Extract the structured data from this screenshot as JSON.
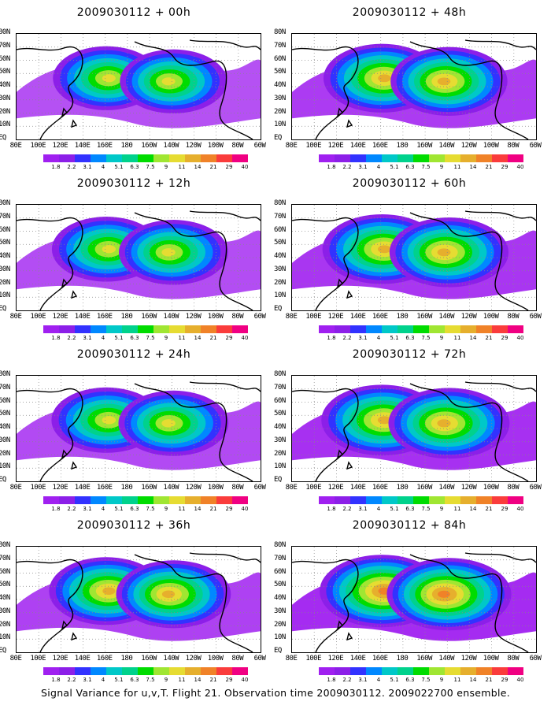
{
  "panels": [
    {
      "title": "2009030112 + 00h"
    },
    {
      "title": "2009030112 + 48h"
    },
    {
      "title": "2009030112 + 12h"
    },
    {
      "title": "2009030112 + 60h"
    },
    {
      "title": "2009030112 + 24h"
    },
    {
      "title": "2009030112 + 72h"
    },
    {
      "title": "2009030112 + 36h"
    },
    {
      "title": "2009030112 + 84h"
    }
  ],
  "latitude_labels": [
    "80N",
    "70N",
    "60N",
    "50N",
    "40N",
    "30N",
    "20N",
    "10N",
    "EQ"
  ],
  "longitude_labels": [
    "80E",
    "100E",
    "120E",
    "140E",
    "160E",
    "180",
    "160W",
    "140W",
    "120W",
    "100W",
    "80W",
    "60W"
  ],
  "colorbar": {
    "tick_labels": [
      "1.8",
      "2.2",
      "3.1",
      "4",
      "5.1",
      "6.3",
      "7.5",
      "9",
      "11",
      "14",
      "21",
      "29",
      "40"
    ],
    "colors": [
      "#a020f0",
      "#8c1fe8",
      "#3232ff",
      "#0088ff",
      "#00c8c8",
      "#00d28c",
      "#00dc00",
      "#a0e632",
      "#e6dc32",
      "#e6af2d",
      "#f08228",
      "#fa3c3c",
      "#f00082"
    ]
  },
  "footer_text": "Signal Variance for u,v,T. Flight 21. Observation time 2009030112. 2009022700 ensemble."
}
